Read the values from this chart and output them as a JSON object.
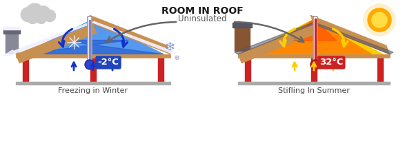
{
  "title": "ROOM IN ROOF",
  "subtitle": "Uninsulated",
  "winter_label": "Freezing in Winter",
  "summer_label": "Stifling In Summer",
  "winter_temp": "-2°C",
  "summer_temp": "32°C",
  "bg_color": "#ffffff",
  "title_fontsize": 10,
  "subtitle_fontsize": 8.5,
  "label_fontsize": 8,
  "rafter_color": "#c89050",
  "rafter_edge": "#8b6020",
  "wall_red": "#cc2222",
  "wall_gray": "#888888",
  "winter_blue_light": "#5599ee",
  "winter_blue_dark": "#2255cc",
  "winter_arrow": "#1133cc",
  "summer_orange": "#ff8800",
  "summer_yellow": "#ffcc00",
  "summer_arrow": "#ffcc00",
  "thermo_red": "#cc2222",
  "thermo_gray": "#888888",
  "cloud_color": "#cccccc",
  "sun_color": "#ffaa00",
  "sun_inner": "#ffdd44",
  "chimney_gray": "#888899",
  "chimney_cap": "#666677",
  "chimney_brown": "#885533",
  "chimney_dark": "#555566",
  "roof_snow": "#eeeeff",
  "slate_color": "#555566",
  "snow_white": "#f0f0ff",
  "arrow_gray": "#666666"
}
